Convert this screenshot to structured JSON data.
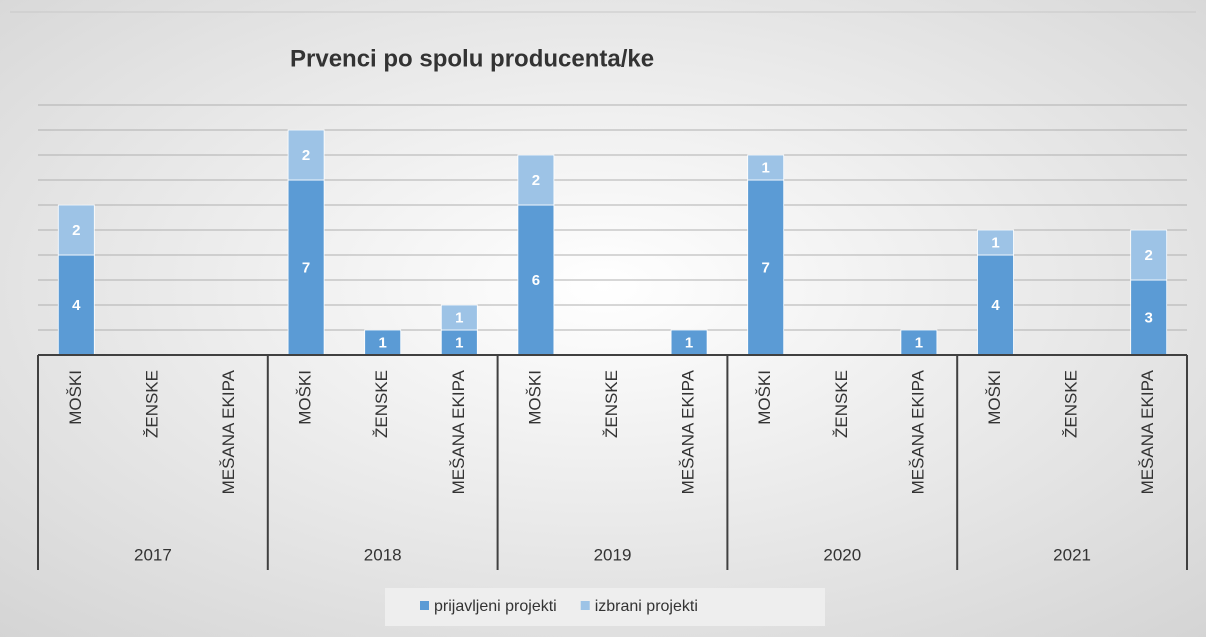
{
  "chart_data": {
    "type": "stacked_bar",
    "title": "Prvenci po spolu producenta/ke",
    "categories": [
      "MOŠKI",
      "ŽENSKE",
      "MEŠANA EKIPA",
      "MOŠKI",
      "ŽENSKE",
      "MEŠANA EKIPA",
      "MOŠKI",
      "ŽENSKE",
      "MEŠANA EKIPA",
      "MOŠKI",
      "ŽENSKE",
      "MEŠANA EKIPA",
      "MOŠKI",
      "ŽENSKE",
      "MEŠANA EKIPA"
    ],
    "groups": [
      "2017",
      "2018",
      "2019",
      "2020",
      "2021"
    ],
    "series": [
      {
        "name": "prijavljeni projekti",
        "color": "#5b9bd5",
        "values": [
          4,
          null,
          null,
          7,
          1,
          1,
          6,
          null,
          1,
          7,
          null,
          1,
          4,
          null,
          3
        ]
      },
      {
        "name": "izbrani projekti",
        "color": "#9dc3e6",
        "values": [
          2,
          null,
          null,
          2,
          null,
          1,
          2,
          null,
          null,
          1,
          null,
          null,
          1,
          null,
          2
        ]
      }
    ],
    "ylim": [
      0,
      10
    ],
    "yticks": [
      0,
      1,
      2,
      3,
      4,
      5,
      6,
      7,
      8,
      9,
      10
    ],
    "grid": true,
    "legend": "bottom"
  }
}
